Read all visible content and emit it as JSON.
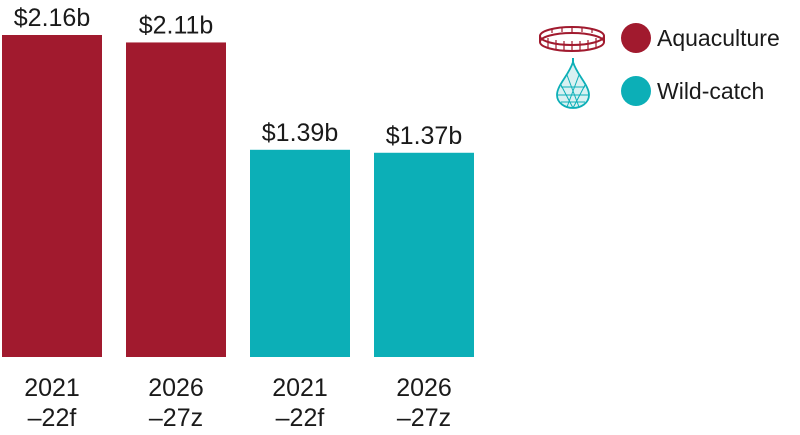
{
  "chart_data": {
    "type": "bar",
    "categories": [
      {
        "line1": "2021",
        "line2": "–22f"
      },
      {
        "line1": "2026",
        "line2": "–27z"
      },
      {
        "line1": "2021",
        "line2": "–22f"
      },
      {
        "line1": "2026",
        "line2": "–27z"
      }
    ],
    "series": [
      {
        "name": "Aquaculture",
        "color": "#a11a2e",
        "icon": "fish-pen-icon",
        "values": [
          2.16,
          2.11,
          null,
          null
        ],
        "labels": [
          "$2.16b",
          "$2.11b",
          "",
          ""
        ]
      },
      {
        "name": "Wild-catch",
        "color": "#0cafb7",
        "icon": "fishing-net-icon",
        "values": [
          null,
          null,
          1.39,
          1.37
        ],
        "labels": [
          "",
          "",
          "$1.39b",
          "$1.37b"
        ]
      }
    ],
    "unit": "$ billion",
    "ylim": [
      0,
      2.16
    ],
    "grid": false,
    "legend": "top-right"
  }
}
